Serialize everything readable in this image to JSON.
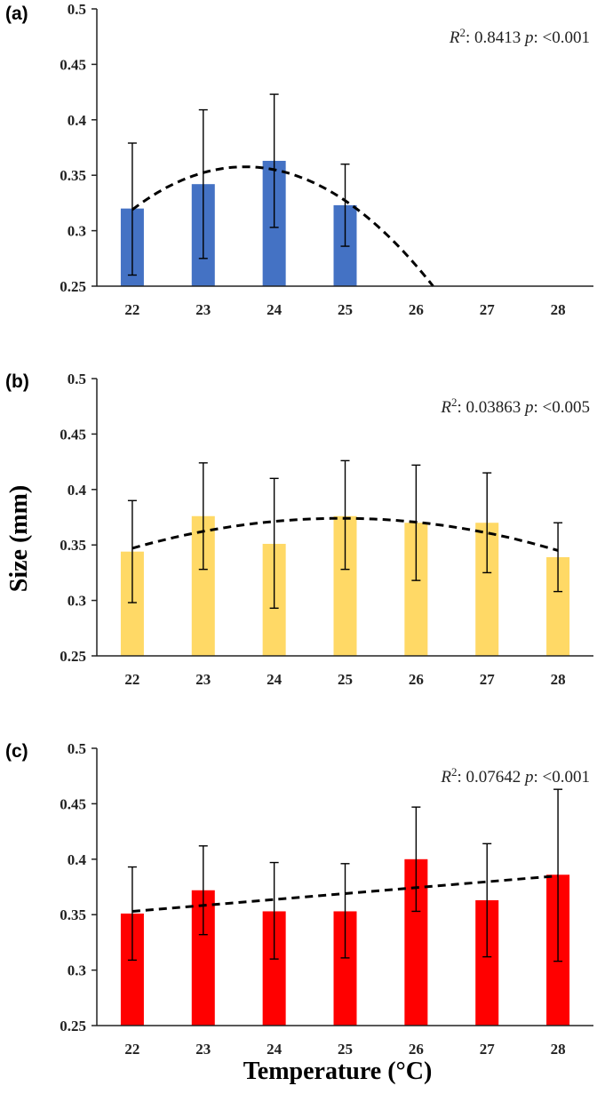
{
  "figure": {
    "ylabel": "Size (mm)",
    "xlabel": "Temperature (°C)"
  },
  "chart_data": [
    {
      "type": "bar",
      "panel_label": "(a)",
      "categories": [
        "22",
        "23",
        "24",
        "25",
        "26",
        "27",
        "28"
      ],
      "values": [
        0.32,
        0.342,
        0.363,
        0.323,
        null,
        null,
        null
      ],
      "error_low": [
        0.26,
        0.275,
        0.303,
        0.286,
        null,
        null,
        null
      ],
      "error_high": [
        0.379,
        0.409,
        0.423,
        0.36,
        null,
        null,
        null
      ],
      "color": "#4472C4",
      "trend": {
        "type": "polynomial",
        "from": 22,
        "to": 26.24,
        "x": [
          22,
          23.5,
          26.24
        ],
        "y": [
          0.319,
          0.3575,
          0.25
        ]
      },
      "annotation": {
        "r2_label": "R",
        "r2_sup": "2",
        "r2_value": ": 0.8413 ",
        "p_label": "p",
        "p_value": ": <0.001"
      },
      "ylim": [
        0.25,
        0.5
      ],
      "yticks": [
        "0.25",
        "0.3",
        "0.35",
        "0.4",
        "0.45",
        "0.5"
      ],
      "grid": false
    },
    {
      "type": "bar",
      "panel_label": "(b)",
      "categories": [
        "22",
        "23",
        "24",
        "25",
        "26",
        "27",
        "28"
      ],
      "values": [
        0.344,
        0.376,
        0.351,
        0.376,
        0.37,
        0.37,
        0.339
      ],
      "error_low": [
        0.298,
        0.328,
        0.293,
        0.328,
        0.318,
        0.325,
        0.308
      ],
      "error_high": [
        0.39,
        0.424,
        0.41,
        0.426,
        0.422,
        0.415,
        0.37
      ],
      "color": "#FFD966",
      "trend": {
        "type": "polynomial",
        "from": 22,
        "to": 28,
        "x": [
          22,
          25,
          28
        ],
        "y": [
          0.347,
          0.374,
          0.345
        ]
      },
      "annotation": {
        "r2_label": "R",
        "r2_sup": "2",
        "r2_value": ": 0.03863 ",
        "p_label": "p",
        "p_value": ": <0.005"
      },
      "ylim": [
        0.25,
        0.5
      ],
      "yticks": [
        "0.25",
        "0.3",
        "0.35",
        "0.4",
        "0.45",
        "0.5"
      ],
      "grid": false
    },
    {
      "type": "bar",
      "panel_label": "(c)",
      "categories": [
        "22",
        "23",
        "24",
        "25",
        "26",
        "27",
        "28"
      ],
      "values": [
        0.351,
        0.372,
        0.353,
        0.353,
        0.4,
        0.363,
        0.386
      ],
      "error_low": [
        0.309,
        0.332,
        0.31,
        0.311,
        0.353,
        0.312,
        0.308
      ],
      "error_high": [
        0.393,
        0.412,
        0.397,
        0.396,
        0.447,
        0.414,
        0.463
      ],
      "color": "#FF0000",
      "trend": {
        "type": "linear",
        "from": 22,
        "to": 28,
        "x": [
          22,
          28
        ],
        "y": [
          0.353,
          0.385
        ]
      },
      "annotation": {
        "r2_label": "R",
        "r2_sup": "2",
        "r2_value": ": 0.07642 ",
        "p_label": "p",
        "p_value": ": <0.001"
      },
      "ylim": [
        0.25,
        0.5
      ],
      "yticks": [
        "0.25",
        "0.3",
        "0.35",
        "0.4",
        "0.45",
        "0.5"
      ],
      "grid": false
    }
  ]
}
